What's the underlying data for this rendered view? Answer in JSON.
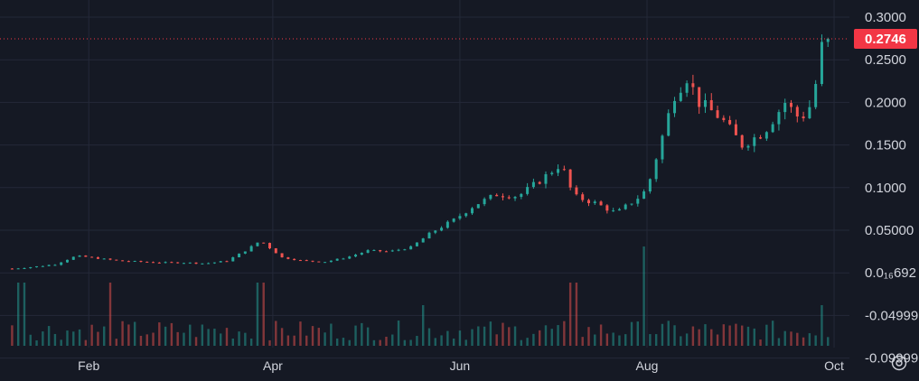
{
  "theme": {
    "background": "#151924",
    "grid": "#242938",
    "up": "#26a69a",
    "down": "#ef5350",
    "text": "#d1d4dc",
    "last_price_color": "#f23645"
  },
  "price_axis": {
    "labels": [
      "0.3000",
      "0.2500",
      "0.2000",
      "0.1500",
      "0.1000",
      "0.05000",
      "0.0₁₆692",
      "-0.04999",
      "-0.09999"
    ],
    "values": [
      0.3,
      0.25,
      0.2,
      0.15,
      0.1,
      0.05,
      0.0,
      -0.05,
      -0.1
    ]
  },
  "time_axis": {
    "labels": [
      "Feb",
      "Apr",
      "Jun",
      "Aug",
      "Oct"
    ],
    "dates": [
      "2024-02-01",
      "2024-04-01",
      "2024-06-01",
      "2024-08-01",
      "2024-10-01"
    ]
  },
  "last_price": {
    "label": "0.2746",
    "value": 0.2746
  },
  "chart_data": {
    "type": "candlestick",
    "x_range": [
      "2024-01-06",
      "2024-10-06"
    ],
    "ylim": [
      -0.1,
      0.31
    ],
    "grid": true,
    "close_series": [
      [
        "2024-01-07",
        0.005
      ],
      [
        "2024-01-14",
        0.007
      ],
      [
        "2024-01-21",
        0.01
      ],
      [
        "2024-01-28",
        0.02
      ],
      [
        "2024-02-04",
        0.017
      ],
      [
        "2024-02-11",
        0.014
      ],
      [
        "2024-02-18",
        0.013
      ],
      [
        "2024-02-25",
        0.012
      ],
      [
        "2024-03-03",
        0.012
      ],
      [
        "2024-03-10",
        0.011
      ],
      [
        "2024-03-17",
        0.014
      ],
      [
        "2024-03-24",
        0.028
      ],
      [
        "2024-03-28",
        0.038
      ],
      [
        "2024-04-04",
        0.018
      ],
      [
        "2024-04-11",
        0.014
      ],
      [
        "2024-04-18",
        0.013
      ],
      [
        "2024-04-25",
        0.018
      ],
      [
        "2024-05-02",
        0.026
      ],
      [
        "2024-05-09",
        0.025
      ],
      [
        "2024-05-16",
        0.03
      ],
      [
        "2024-05-23",
        0.048
      ],
      [
        "2024-05-30",
        0.062
      ],
      [
        "2024-06-06",
        0.08
      ],
      [
        "2024-06-13",
        0.092
      ],
      [
        "2024-06-20",
        0.09
      ],
      [
        "2024-06-27",
        0.108
      ],
      [
        "2024-07-04",
        0.128
      ],
      [
        "2024-07-08",
        0.09
      ],
      [
        "2024-07-15",
        0.082
      ],
      [
        "2024-07-22",
        0.07
      ],
      [
        "2024-07-29",
        0.088
      ],
      [
        "2024-08-01",
        0.098
      ],
      [
        "2024-08-06",
        0.16
      ],
      [
        "2024-08-10",
        0.21
      ],
      [
        "2024-08-14",
        0.23
      ],
      [
        "2024-08-18",
        0.2
      ],
      [
        "2024-08-25",
        0.182
      ],
      [
        "2024-09-01",
        0.15
      ],
      [
        "2024-09-08",
        0.165
      ],
      [
        "2024-09-15",
        0.2
      ],
      [
        "2024-09-20",
        0.18
      ],
      [
        "2024-09-24",
        0.2
      ],
      [
        "2024-09-27",
        0.265
      ],
      [
        "2024-09-30",
        0.2746
      ]
    ],
    "volume_peaks": [
      [
        "2024-01-10",
        "high"
      ],
      [
        "2024-02-08",
        "high"
      ],
      [
        "2024-03-28",
        "high"
      ],
      [
        "2024-05-20",
        "medium"
      ],
      [
        "2024-07-08",
        "high"
      ],
      [
        "2024-07-31",
        "very high"
      ],
      [
        "2024-09-27",
        "medium"
      ]
    ]
  }
}
